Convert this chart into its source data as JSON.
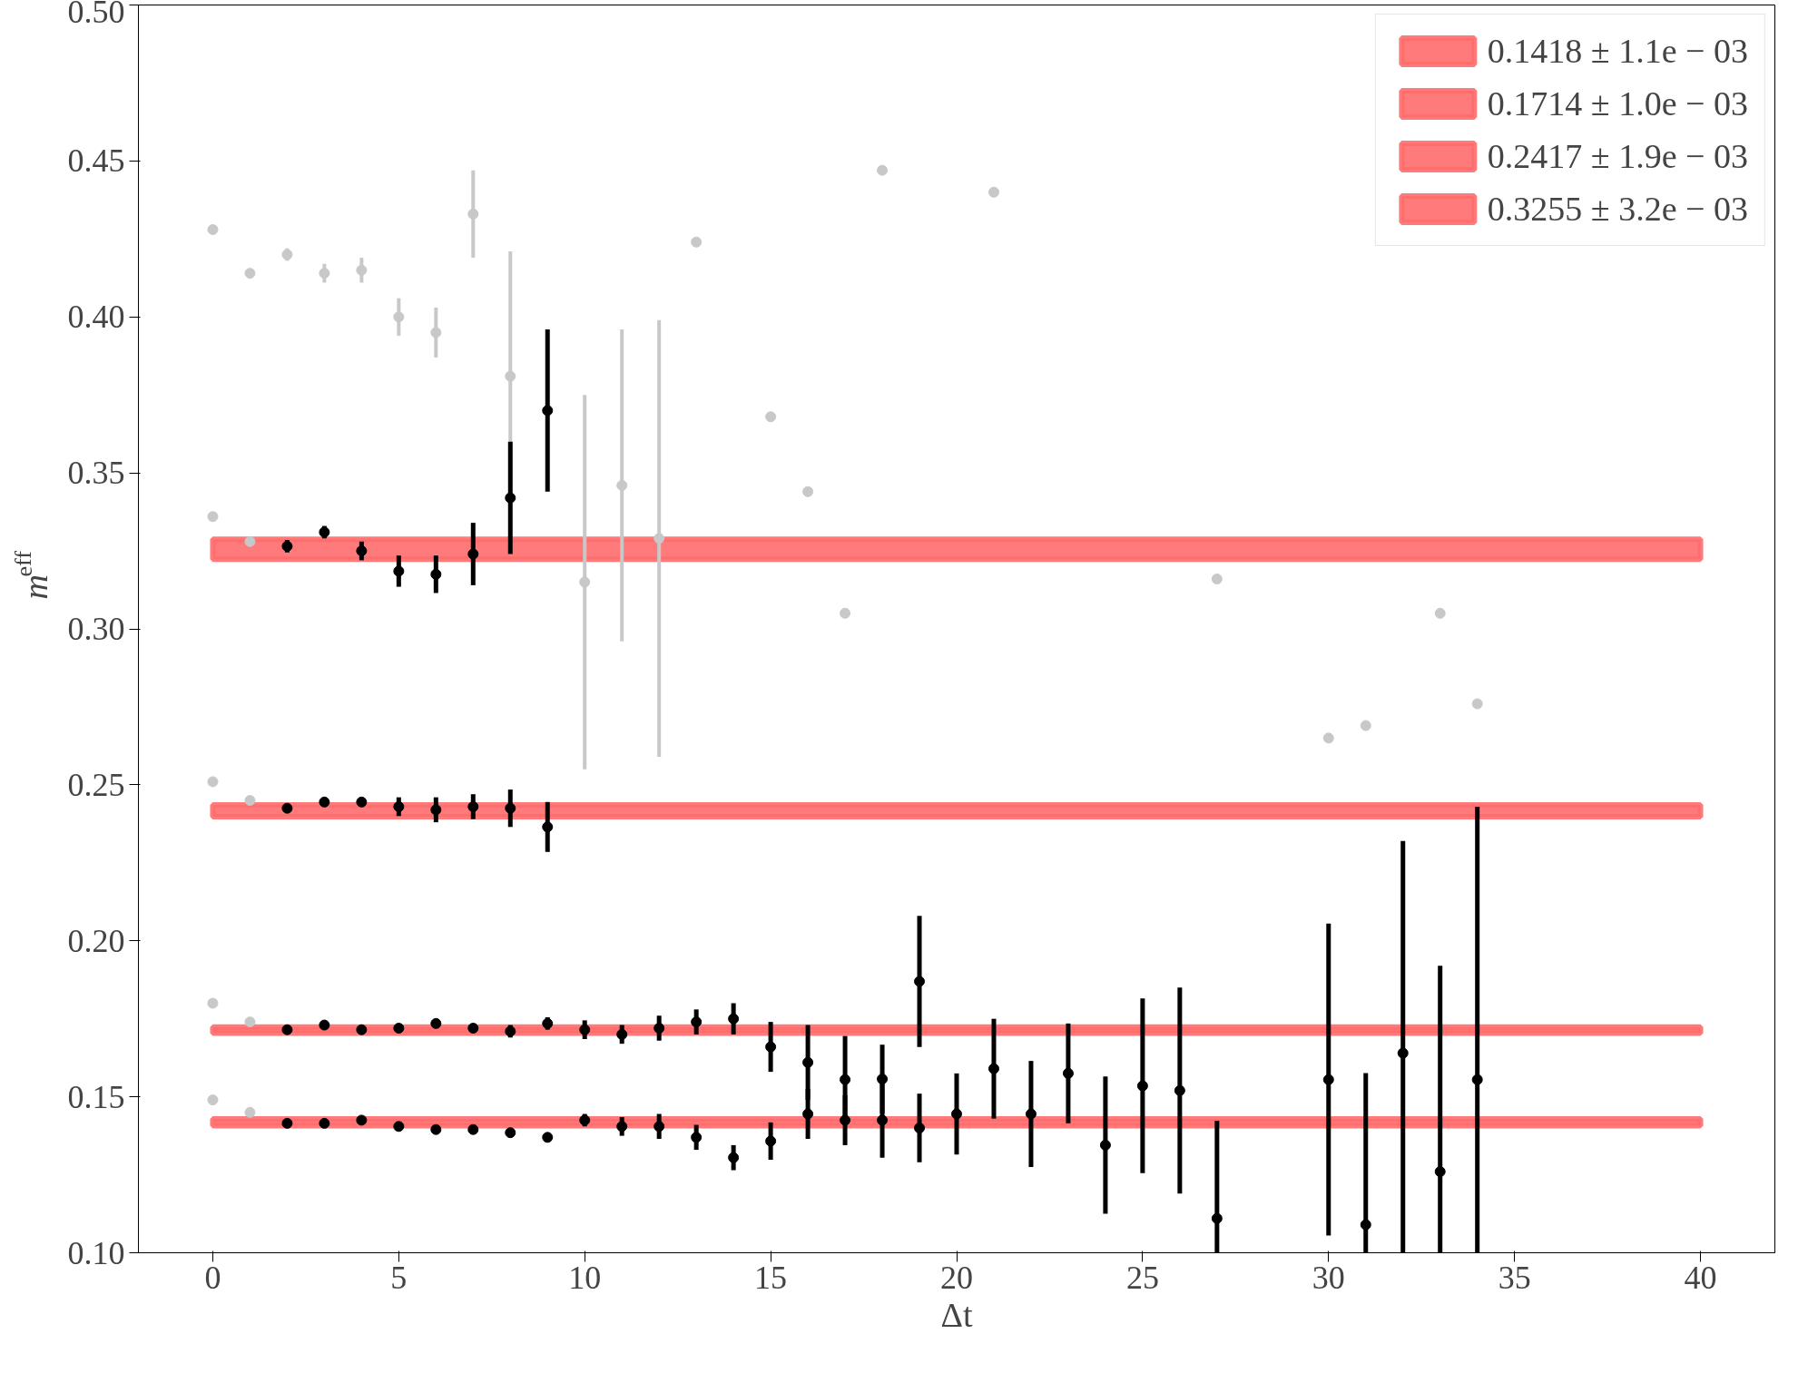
{
  "chart_data": {
    "type": "scatter",
    "xlabel": "Δt",
    "ylabel": "m$_{eff}$",
    "xlim": [
      -2,
      42
    ],
    "ylim": [
      0.1,
      0.5
    ],
    "xticks": [
      0,
      5,
      10,
      15,
      20,
      25,
      30,
      35,
      40
    ],
    "yticks": [
      {
        "value": 0.1,
        "label": "0.10"
      },
      {
        "value": 0.15,
        "label": "0.15"
      },
      {
        "value": 0.2,
        "label": "0.20"
      },
      {
        "value": 0.25,
        "label": "0.25"
      },
      {
        "value": 0.3,
        "label": "0.30"
      },
      {
        "value": 0.35,
        "label": "0.35"
      },
      {
        "value": 0.4,
        "label": "0.40"
      },
      {
        "value": 0.45,
        "label": "0.45"
      },
      {
        "value": 0.5,
        "label": "0.50"
      }
    ],
    "grid": false,
    "legend": "top right",
    "marker": "circle",
    "bands": [
      {
        "axis": "y",
        "from": 0.1407,
        "to": 0.1429,
        "label": "0.1418 ± 1.1e − 03",
        "color": "#ff6b6b"
      },
      {
        "axis": "y",
        "from": 0.1704,
        "to": 0.1724,
        "label": "0.1714 ± 1.0e − 03",
        "color": "#ff6b6b"
      },
      {
        "axis": "y",
        "from": 0.2398,
        "to": 0.2436,
        "label": "0.2417 ± 1.9e − 03",
        "color": "#ff6b6b"
      },
      {
        "axis": "y",
        "from": 0.3223,
        "to": 0.3287,
        "label": "0.3255 ± 3.2e − 03",
        "color": "#ff6b6b"
      }
    ],
    "series": [
      {
        "color": "#c8c8c8",
        "x": [
          0,
          1,
          0,
          1,
          0,
          1,
          0,
          1,
          2,
          3,
          4,
          5,
          6,
          7,
          8
        ],
        "values": [
          0.149,
          0.145,
          0.18,
          0.174,
          0.251,
          0.245,
          0.428,
          0.414,
          0.42,
          0.414,
          0.415,
          0.4,
          0.395,
          0.433,
          0.381
        ],
        "errors": [
          0.001,
          0.001,
          0.001,
          0.001,
          0.001,
          0.001,
          0.001,
          0.001,
          0.002,
          0.003,
          0.004,
          0.006,
          0.008,
          0.014,
          0.04
        ]
      },
      {
        "color": "#c8c8c8",
        "x": [
          0,
          1,
          10,
          11,
          12,
          13,
          15,
          16,
          17,
          18,
          21,
          27,
          30,
          31,
          33,
          34
        ],
        "values": [
          0.336,
          0.328,
          0.315,
          0.346,
          0.329,
          0.424,
          0.368,
          0.344,
          0.305,
          0.447,
          0.44,
          0.316,
          0.265,
          0.269,
          0.305,
          0.276
        ],
        "errors": [
          0.001,
          0.001,
          0.06,
          0.05,
          0.07,
          null,
          null,
          null,
          null,
          null,
          null,
          null,
          null,
          null,
          null,
          null
        ]
      },
      {
        "color": "#000000",
        "x": [
          2,
          3,
          4,
          5,
          6,
          7,
          8,
          9,
          10,
          11,
          12,
          13,
          14,
          15,
          16,
          17,
          18,
          19,
          20,
          22,
          24,
          27,
          31,
          33
        ],
        "values": [
          0.1415,
          0.1415,
          0.1425,
          0.1405,
          0.1395,
          0.1395,
          0.1385,
          0.137,
          0.1425,
          0.1405,
          0.1405,
          0.137,
          0.1305,
          0.1358,
          0.1445,
          0.1425,
          0.1425,
          0.14,
          0.1445,
          0.1445,
          0.1345,
          0.111,
          0.109,
          0.126
        ],
        "errors": [
          0.001,
          0.001,
          0.001,
          0.001,
          0.001,
          0.0015,
          0.0015,
          0.0015,
          0.002,
          0.003,
          0.004,
          0.004,
          0.004,
          0.006,
          0.008,
          0.008,
          0.012,
          0.011,
          0.013,
          0.017,
          0.022,
          [
            0.1,
            0.1423
          ],
          [
            0.1,
            0.1576
          ],
          [
            0.1,
            0.192
          ]
        ]
      },
      {
        "color": "#000000",
        "x": [
          2,
          3,
          4,
          5,
          6,
          7,
          8,
          9,
          10,
          11,
          12,
          13,
          14,
          15,
          16,
          17,
          18,
          19,
          21,
          23,
          25,
          26,
          30,
          32,
          34
        ],
        "values": [
          0.1715,
          0.173,
          0.1715,
          0.172,
          0.1735,
          0.172,
          0.171,
          0.1735,
          0.1715,
          0.17,
          0.172,
          0.174,
          0.175,
          0.166,
          0.161,
          0.1555,
          0.1557,
          0.187,
          0.159,
          0.1575,
          0.1535,
          0.152,
          0.1555,
          0.164,
          0.1555
        ],
        "errors": [
          0.001,
          0.001,
          0.001,
          0.001,
          0.001,
          0.001,
          0.002,
          0.002,
          0.003,
          0.003,
          0.004,
          0.004,
          0.005,
          0.008,
          0.012,
          0.014,
          0.011,
          0.021,
          0.016,
          0.016,
          0.028,
          0.033,
          0.05,
          [
            0.1,
            0.232
          ],
          [
            0.1,
            0.243
          ]
        ]
      },
      {
        "color": "#000000",
        "x": [
          2,
          3,
          4,
          5,
          6,
          7,
          8,
          9
        ],
        "values": [
          0.2425,
          0.2445,
          0.2445,
          0.243,
          0.242,
          0.243,
          0.2425,
          0.2365
        ],
        "errors": [
          0.001,
          0.001,
          0.001,
          0.003,
          0.004,
          0.004,
          0.006,
          0.008
        ]
      },
      {
        "color": "#000000",
        "x": [
          2,
          3,
          4,
          5,
          6,
          7,
          8,
          9
        ],
        "values": [
          0.3265,
          0.331,
          0.325,
          0.3185,
          0.3175,
          0.324,
          0.342,
          0.37
        ],
        "errors": [
          0.002,
          0.002,
          0.003,
          0.005,
          0.006,
          0.01,
          0.018,
          0.026
        ]
      }
    ]
  }
}
